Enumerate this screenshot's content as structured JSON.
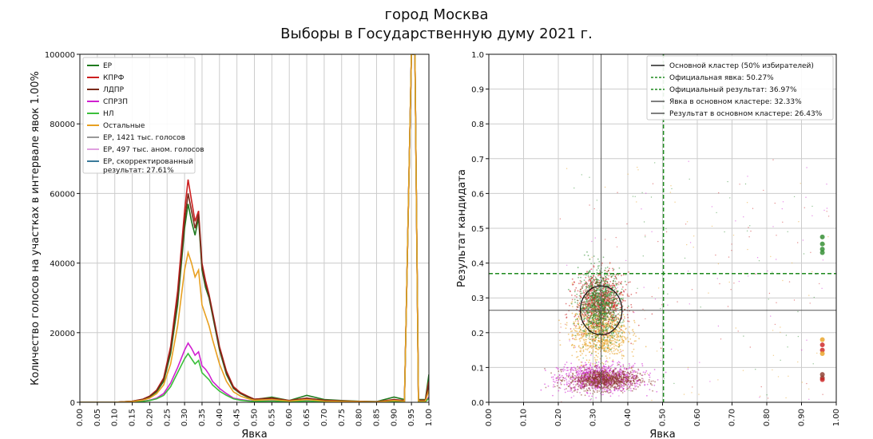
{
  "title_line1": "город Москва",
  "title_line2": "Выборы в Государственную думу 2021 г.",
  "chart_data": [
    {
      "type": "line",
      "xlabel": "Явка",
      "ylabel": "Количество голосов на участках в интервале явок 1.00%",
      "xlim": [
        0,
        1
      ],
      "ylim": [
        0,
        100000
      ],
      "x_ticks": [
        "0.00",
        "0.05",
        "0.10",
        "0.15",
        "0.20",
        "0.25",
        "0.30",
        "0.35",
        "0.40",
        "0.45",
        "0.50",
        "0.55",
        "0.60",
        "0.65",
        "0.70",
        "0.75",
        "0.80",
        "0.85",
        "0.90",
        "0.95",
        "1.00"
      ],
      "y_ticks": [
        "0",
        "20000",
        "40000",
        "60000",
        "80000",
        "100000"
      ],
      "grid": true,
      "legend_position": "top-left",
      "x": [
        0.0,
        0.1,
        0.15,
        0.18,
        0.2,
        0.22,
        0.24,
        0.26,
        0.28,
        0.3,
        0.31,
        0.32,
        0.33,
        0.34,
        0.35,
        0.36,
        0.37,
        0.38,
        0.4,
        0.42,
        0.44,
        0.46,
        0.48,
        0.5,
        0.55,
        0.6,
        0.65,
        0.7,
        0.75,
        0.8,
        0.85,
        0.9,
        0.93,
        0.95,
        0.96,
        0.97,
        0.99,
        1.0
      ],
      "series": [
        {
          "name": "ЕР",
          "color": "#1e7a1e",
          "values": [
            0,
            0,
            300,
            800,
            1500,
            3000,
            6000,
            14000,
            28000,
            50000,
            57000,
            52000,
            48000,
            53000,
            38000,
            33000,
            30000,
            25000,
            15000,
            8000,
            4000,
            2500,
            1500,
            800,
            1500,
            500,
            2000,
            800,
            500,
            300,
            200,
            1500,
            800,
            100000,
            100000,
            800,
            800,
            8000
          ]
        },
        {
          "name": "КПРФ",
          "color": "#cc1f1f",
          "values": [
            0,
            0,
            300,
            900,
            1800,
            3500,
            7000,
            16000,
            32000,
            55000,
            64000,
            58000,
            52000,
            55000,
            40000,
            35000,
            31000,
            26000,
            16000,
            9000,
            4500,
            2800,
            1800,
            900,
            1200,
            500,
            1200,
            600,
            400,
            250,
            150,
            800,
            500,
            100000,
            100000,
            600,
            600,
            6000
          ]
        },
        {
          "name": "ЛДПР",
          "color": "#7a2a1a",
          "values": [
            0,
            0,
            300,
            850,
            1700,
            3300,
            6600,
            15000,
            30000,
            52000,
            60000,
            55000,
            50000,
            54000,
            39000,
            34000,
            30500,
            25500,
            15500,
            8500,
            4200,
            2600,
            1700,
            850,
            1100,
            450,
            1100,
            550,
            350,
            220,
            140,
            700,
            450,
            100000,
            100000,
            500,
            500,
            5000
          ]
        },
        {
          "name": "СПРЗП",
          "color": "#d020d0",
          "values": [
            0,
            0,
            100,
            300,
            600,
            1200,
            2500,
            5500,
            10000,
            15000,
            17000,
            15500,
            13500,
            14500,
            10500,
            9500,
            8000,
            6000,
            4000,
            2500,
            1200,
            800,
            500,
            300,
            400,
            200,
            400,
            200,
            150,
            100,
            60,
            300,
            200,
            100000,
            100000,
            200,
            200,
            1500
          ]
        },
        {
          "name": "НЛ",
          "color": "#3bbf3b",
          "values": [
            0,
            0,
            100,
            250,
            500,
            1000,
            2000,
            4500,
            8500,
            12500,
            14000,
            12500,
            11000,
            12000,
            8500,
            7500,
            6500,
            5000,
            3200,
            2000,
            1000,
            600,
            400,
            250,
            350,
            150,
            350,
            150,
            100,
            80,
            50,
            250,
            150,
            100000,
            100000,
            150,
            150,
            1200
          ]
        },
        {
          "name": "Остальные",
          "color": "#e8a020",
          "values": [
            0,
            0,
            200,
            600,
            1200,
            2500,
            5000,
            11000,
            22000,
            38000,
            43000,
            40000,
            36000,
            38000,
            28000,
            25000,
            22000,
            18000,
            11000,
            6000,
            3000,
            1800,
            1100,
            600,
            800,
            350,
            800,
            350,
            250,
            180,
            100,
            500,
            300,
            100000,
            100000,
            350,
            350,
            3500
          ]
        }
      ],
      "legend": [
        {
          "name": "ЕР",
          "color": "#1e7a1e"
        },
        {
          "name": "КПРФ",
          "color": "#cc1f1f"
        },
        {
          "name": "ЛДПР",
          "color": "#7a2a1a"
        },
        {
          "name": "СПРЗП",
          "color": "#d020d0"
        },
        {
          "name": "НЛ",
          "color": "#3bbf3b"
        },
        {
          "name": "Остальные",
          "color": "#e8a020"
        },
        {
          "name": "ЕР, 1421 тыс. голосов",
          "color": "#999999"
        },
        {
          "name": "ЕР, 497 тыс. аном. голосов",
          "color": "#e0a0e0"
        },
        {
          "name": "ЕР, скорректированный",
          "name2": "результат: 27.61%",
          "color": "#3a7a9a"
        }
      ]
    },
    {
      "type": "scatter",
      "xlabel": "Явка",
      "ylabel": "Результат кандидата",
      "xlim": [
        0,
        1
      ],
      "ylim": [
        0,
        1
      ],
      "x_ticks": [
        "0.00",
        "0.10",
        "0.20",
        "0.30",
        "0.40",
        "0.50",
        "0.60",
        "0.70",
        "0.80",
        "0.90",
        "1.00"
      ],
      "y_ticks": [
        "0.0",
        "0.1",
        "0.2",
        "0.3",
        "0.4",
        "0.5",
        "0.6",
        "0.7",
        "0.8",
        "0.9",
        "1.0"
      ],
      "grid": true,
      "legend_position": "top-right",
      "clusters": [
        {
          "party": "СПРЗП",
          "color": "#d020d0",
          "cx": 0.32,
          "cy": 0.07,
          "sx": 0.06,
          "sy": 0.02
        },
        {
          "party": "ЛДПР",
          "color": "#8b3a2a",
          "cx": 0.33,
          "cy": 0.065,
          "sx": 0.05,
          "sy": 0.015
        },
        {
          "party": "Остальные",
          "color": "#e8a020",
          "cx": 0.32,
          "cy": 0.2,
          "sx": 0.04,
          "sy": 0.04
        },
        {
          "party": "КПРФ",
          "color": "#cc1f1f",
          "cx": 0.32,
          "cy": 0.29,
          "sx": 0.035,
          "sy": 0.04
        },
        {
          "party": "ЕР",
          "color": "#2a8a2a",
          "cx": 0.32,
          "cy": 0.28,
          "sx": 0.03,
          "sy": 0.05
        }
      ],
      "outliers": [
        {
          "x": 0.96,
          "y": 0.475,
          "color": "#2a8a2a"
        },
        {
          "x": 0.96,
          "y": 0.455,
          "color": "#2a8a2a"
        },
        {
          "x": 0.96,
          "y": 0.44,
          "color": "#2a8a2a"
        },
        {
          "x": 0.96,
          "y": 0.43,
          "color": "#2a8a2a"
        },
        {
          "x": 0.96,
          "y": 0.18,
          "color": "#e8a020"
        },
        {
          "x": 0.96,
          "y": 0.165,
          "color": "#cc1f1f"
        },
        {
          "x": 0.96,
          "y": 0.15,
          "color": "#cc1f1f"
        },
        {
          "x": 0.96,
          "y": 0.14,
          "color": "#e8a020"
        },
        {
          "x": 0.96,
          "y": 0.08,
          "color": "#8b3a2a"
        },
        {
          "x": 0.96,
          "y": 0.07,
          "color": "#8b3a2a"
        },
        {
          "x": 0.96,
          "y": 0.065,
          "color": "#cc1f1f"
        }
      ],
      "ellipse": {
        "cx": 0.3233,
        "cy": 0.2643,
        "rx": 0.06,
        "ry": 0.07
      },
      "official_turnout": 0.5027,
      "official_result": 0.3697,
      "cluster_turnout": 0.3233,
      "cluster_result": 0.2643,
      "legend": [
        {
          "name": "Основной кластер (50% избирателей)",
          "style": "solid",
          "color": "#222222"
        },
        {
          "name": "Официальная явка: 50.27%",
          "style": "dashed",
          "color": "#1e8a1e"
        },
        {
          "name": "Официальный результат: 36.97%",
          "style": "dashed",
          "color": "#1e8a1e"
        },
        {
          "name": "Явка в основном кластере: 32.33%",
          "style": "solid",
          "color": "#555555"
        },
        {
          "name": "Результат в основном кластере: 26.43%",
          "style": "solid",
          "color": "#555555"
        }
      ]
    }
  ]
}
